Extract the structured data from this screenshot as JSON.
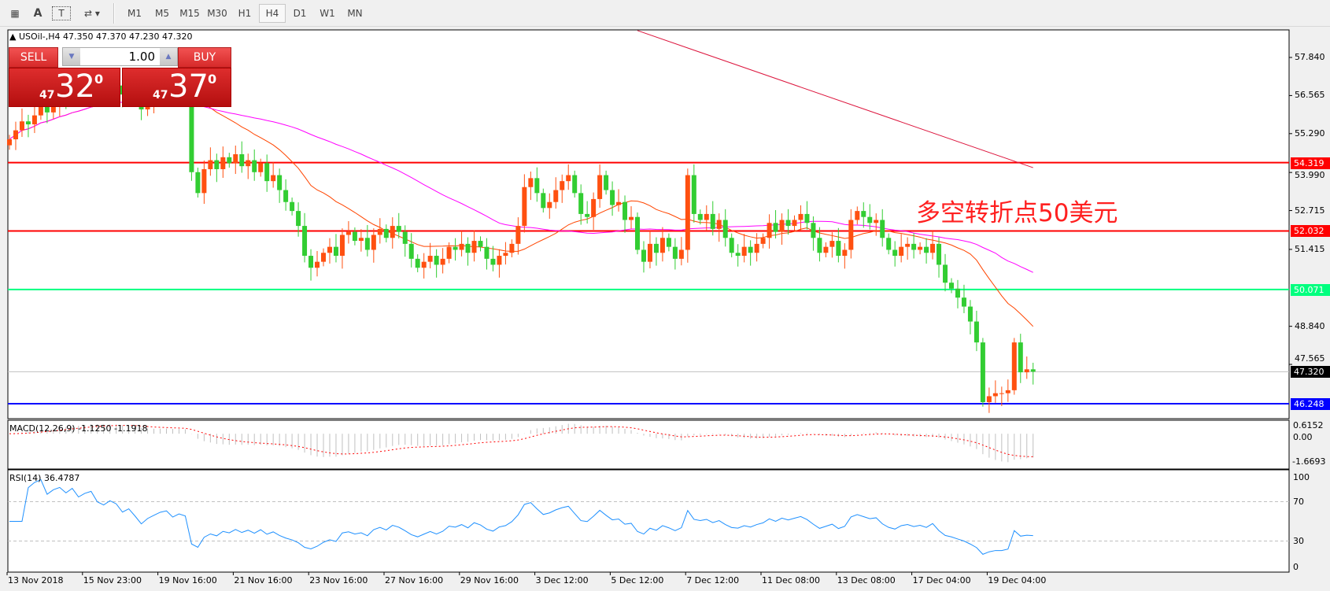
{
  "toolbar": {
    "tools": [
      {
        "icon": "fibonacci-fan-icon"
      },
      {
        "icon": "text-icon",
        "label": "A"
      },
      {
        "icon": "text-label-icon",
        "label": "T"
      },
      {
        "icon": "arrows-dropdown-icon"
      }
    ],
    "timeframes": [
      "M1",
      "M5",
      "M15",
      "M30",
      "H1",
      "H4",
      "D1",
      "W1",
      "MN"
    ],
    "active_timeframe": "H4"
  },
  "chart": {
    "header": "USOil-,H4  47.350 47.370 47.230 47.320",
    "symbol": "USOil-",
    "timeframe": "H4",
    "trade_panel": {
      "sell_label": "SELL",
      "buy_label": "BUY",
      "lot": "1.00",
      "sell_big": "32",
      "sell_small": "47",
      "sell_sup": "0",
      "buy_big": "37",
      "buy_small": "47",
      "buy_sup": "0"
    },
    "annotation": "多空转折点50美元"
  },
  "colors": {
    "bull": "#ff5010",
    "bear": "#32cd32",
    "ma_fast": "#ff4500",
    "ma_slow": "#ff00ff",
    "ma_long": "#dc143c",
    "macd_hist": "#c0c0c0",
    "macd_signal": "#ff0000",
    "rsi": "#1e90ff"
  },
  "chart_data": {
    "type": "candlestick",
    "price_ticks": [
      "57.840",
      "56.565",
      "55.290",
      "53.990",
      "52.715",
      "51.415",
      "48.840",
      "47.565"
    ],
    "levels": [
      {
        "value": "54.319",
        "color": "#ff0000"
      },
      {
        "value": "52.032",
        "color": "#ff0000"
      },
      {
        "value": "50.071",
        "color": "#00ff7f"
      },
      {
        "value": "46.248",
        "color": "#0000ff"
      }
    ],
    "current_price": "47.320",
    "closes": [
      55.1,
      55.4,
      55.7,
      55.6,
      55.9,
      56.2,
      56.0,
      56.3,
      56.5,
      56.4,
      56.8,
      56.6,
      56.9,
      57.1,
      56.8,
      56.7,
      57.0,
      56.9,
      56.6,
      56.8,
      56.5,
      56.1,
      56.4,
      56.6,
      56.8,
      56.9,
      56.6,
      56.8,
      56.7,
      54.0,
      53.3,
      54.1,
      54.4,
      54.1,
      54.5,
      54.3,
      54.6,
      54.2,
      54.4,
      54.0,
      54.3,
      53.7,
      53.9,
      53.4,
      53.0,
      52.7,
      52.2,
      51.2,
      50.8,
      51.0,
      51.3,
      51.5,
      51.2,
      51.9,
      52.0,
      51.7,
      51.8,
      51.4,
      51.9,
      52.1,
      51.8,
      52.2,
      52.0,
      51.6,
      51.1,
      50.8,
      51.0,
      51.2,
      50.9,
      51.1,
      51.5,
      51.4,
      51.6,
      51.3,
      51.7,
      51.5,
      51.1,
      50.9,
      51.2,
      51.3,
      51.6,
      52.2,
      53.5,
      53.8,
      53.3,
      52.8,
      53.0,
      53.4,
      53.7,
      53.9,
      53.3,
      52.6,
      52.5,
      53.1,
      53.9,
      53.4,
      52.9,
      53.0,
      52.4,
      52.5,
      51.4,
      51.0,
      51.6,
      51.3,
      51.8,
      51.5,
      51.1,
      51.4,
      53.9,
      52.6,
      52.4,
      52.6,
      52.1,
      52.4,
      51.8,
      51.3,
      51.2,
      51.5,
      51.3,
      51.6,
      51.8,
      52.3,
      52.0,
      52.4,
      52.2,
      52.4,
      52.6,
      52.3,
      51.8,
      51.3,
      51.5,
      51.7,
      51.2,
      51.4,
      52.4,
      52.7,
      52.5,
      52.3,
      52.4,
      51.8,
      51.4,
      51.2,
      51.5,
      51.6,
      51.4,
      51.5,
      51.3,
      51.6,
      50.9,
      50.3,
      50.1,
      49.8,
      49.5,
      49.0,
      48.3,
      46.3,
      46.5,
      46.6,
      46.6,
      46.7,
      48.3,
      47.3,
      47.4,
      47.32
    ],
    "ma_long": {
      "start_price": 58.74,
      "end_price": 54.15
    },
    "time_labels": [
      "13 Nov 2018",
      "15 Nov 23:00",
      "19 Nov 16:00",
      "21 Nov 16:00",
      "23 Nov 16:00",
      "27 Nov 16:00",
      "29 Nov 16:00",
      "3 Dec 12:00",
      "5 Dec 12:00",
      "7 Dec 12:00",
      "11 Dec 08:00",
      "13 Dec 08:00",
      "17 Dec 04:00",
      "19 Dec 04:00"
    ],
    "macd": {
      "label": "MACD(12,26,9) -1.1250 -1.1918",
      "max": "0.6152",
      "zero": "0.00",
      "min": "-1.6693"
    },
    "rsi": {
      "label": "RSI(14) 36.4787",
      "ticks": [
        "100",
        "70",
        "30",
        "0"
      ]
    }
  }
}
